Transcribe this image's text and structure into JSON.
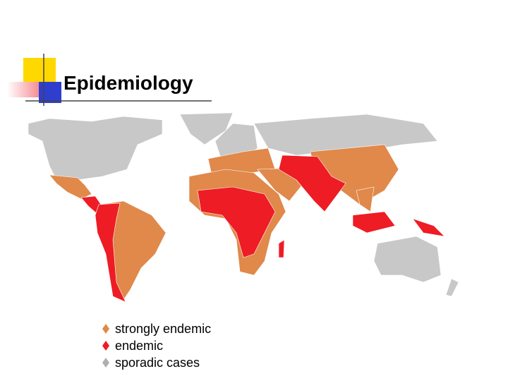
{
  "header": {
    "title": "Epidemiology"
  },
  "legend": {
    "items": [
      "strongly endemic",
      "endemic",
      "sporadic cases"
    ]
  }
}
